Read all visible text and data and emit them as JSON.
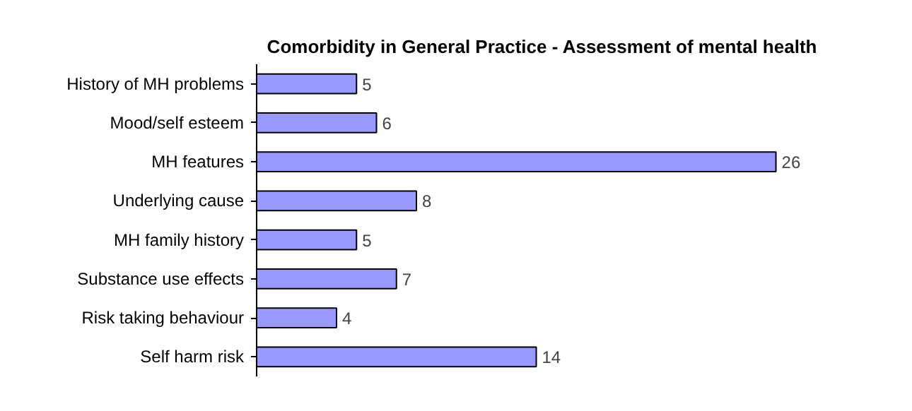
{
  "chart_data": {
    "type": "bar",
    "orientation": "horizontal",
    "title": "Comorbidity in General Practice - Assessment of mental health",
    "categories": [
      "History of MH problems",
      "Mood/self esteem",
      "MH features",
      "Underlying cause",
      "MH family history",
      "Substance use effects",
      "Risk taking behaviour",
      "Self harm risk"
    ],
    "values": [
      5,
      6,
      26,
      8,
      5,
      7,
      4,
      14
    ],
    "color": "#9999ff",
    "data_labels": true,
    "grid": false
  }
}
